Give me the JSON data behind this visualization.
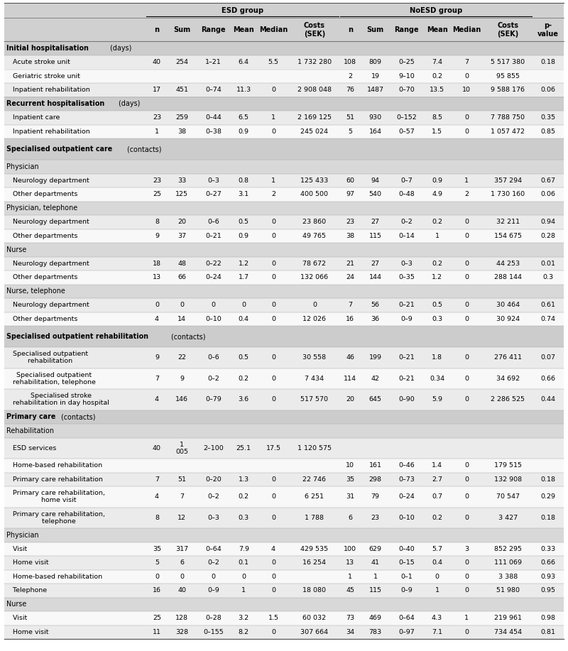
{
  "rows": [
    {
      "label": "Initial hospitalisation (days)",
      "type": "section_bold",
      "data": [
        "",
        "",
        "",
        "",
        "",
        "",
        "",
        "",
        "",
        "",
        "",
        "",
        ""
      ]
    },
    {
      "label": "   Acute stroke unit",
      "type": "data",
      "data": [
        "40",
        "254",
        "1–21",
        "6.4",
        "5.5",
        "1 732 280",
        "108",
        "809",
        "0–25",
        "7.4",
        "7",
        "5 517 380",
        "0.18"
      ]
    },
    {
      "label": "   Geriatric stroke unit",
      "type": "data",
      "data": [
        "",
        "",
        "",
        "",
        "",
        "",
        "2",
        "19",
        "9–10",
        "0.2",
        "0",
        "95 855",
        ""
      ]
    },
    {
      "label": "   Inpatient rehabilitation",
      "type": "data",
      "data": [
        "17",
        "451",
        "0–74",
        "11.3",
        "0",
        "2 908 048",
        "76",
        "1487",
        "0–70",
        "13.5",
        "10",
        "9 588 176",
        "0.06"
      ]
    },
    {
      "label": "Recurrent hospitalisation (days)",
      "type": "section_bold",
      "data": [
        "",
        "",
        "",
        "",
        "",
        "",
        "",
        "",
        "",
        "",
        "",
        "",
        ""
      ]
    },
    {
      "label": "   Inpatient care",
      "type": "data",
      "data": [
        "23",
        "259",
        "0–44",
        "6.5",
        "1",
        "2 169 125",
        "51",
        "930",
        "0–152",
        "8.5",
        "0",
        "7 788 750",
        "0.35"
      ]
    },
    {
      "label": "   Inpatient rehabilitation",
      "type": "data",
      "data": [
        "1",
        "38",
        "0–38",
        "0.9",
        "0",
        "245 024",
        "5",
        "164",
        "0–57",
        "1.5",
        "0",
        "1 057 472",
        "0.85"
      ]
    },
    {
      "label": "Specialised outpatient care\n(contacts)",
      "type": "section_bold2",
      "data": [
        "",
        "",
        "",
        "",
        "",
        "",
        "",
        "",
        "",
        "",
        "",
        "",
        ""
      ]
    },
    {
      "label": "Physician",
      "type": "subsection",
      "data": [
        "",
        "",
        "",
        "",
        "",
        "",
        "",
        "",
        "",
        "",
        "",
        "",
        ""
      ]
    },
    {
      "label": "   Neurology department",
      "type": "data",
      "data": [
        "23",
        "33",
        "0–3",
        "0.8",
        "1",
        "125 433",
        "60",
        "94",
        "0–7",
        "0.9",
        "1",
        "357 294",
        "0.67"
      ]
    },
    {
      "label": "   Other departments",
      "type": "data",
      "data": [
        "25",
        "125",
        "0–27",
        "3.1",
        "2",
        "400 500",
        "97",
        "540",
        "0–48",
        "4.9",
        "2",
        "1 730 160",
        "0.06"
      ]
    },
    {
      "label": "Physician, telephone",
      "type": "subsection",
      "data": [
        "",
        "",
        "",
        "",
        "",
        "",
        "",
        "",
        "",
        "",
        "",
        "",
        ""
      ]
    },
    {
      "label": "   Neurology department",
      "type": "data",
      "data": [
        "8",
        "20",
        "0–6",
        "0.5",
        "0",
        "23 860",
        "23",
        "27",
        "0–2",
        "0.2",
        "0",
        "32 211",
        "0.94"
      ]
    },
    {
      "label": "   Other departments",
      "type": "data",
      "data": [
        "9",
        "37",
        "0–21",
        "0.9",
        "0",
        "49 765",
        "38",
        "115",
        "0–14",
        "1",
        "0",
        "154 675",
        "0.28"
      ]
    },
    {
      "label": "Nurse",
      "type": "subsection",
      "data": [
        "",
        "",
        "",
        "",
        "",
        "",
        "",
        "",
        "",
        "",
        "",
        "",
        ""
      ]
    },
    {
      "label": "   Neurology department",
      "type": "data",
      "data": [
        "18",
        "48",
        "0–22",
        "1.2",
        "0",
        "78 672",
        "21",
        "27",
        "0–3",
        "0.2",
        "0",
        "44 253",
        "0.01"
      ]
    },
    {
      "label": "   Other departments",
      "type": "data",
      "data": [
        "13",
        "66",
        "0–24",
        "1.7",
        "0",
        "132 066",
        "24",
        "144",
        "0–35",
        "1.2",
        "0",
        "288 144",
        "0.3"
      ]
    },
    {
      "label": "Nurse, telephone",
      "type": "subsection",
      "data": [
        "",
        "",
        "",
        "",
        "",
        "",
        "",
        "",
        "",
        "",
        "",
        "",
        ""
      ]
    },
    {
      "label": "   Neurology department",
      "type": "data",
      "data": [
        "0",
        "0",
        "0",
        "0",
        "0",
        "0",
        "7",
        "56",
        "0–21",
        "0.5",
        "0",
        "30 464",
        "0.61"
      ]
    },
    {
      "label": "   Other departments",
      "type": "data",
      "data": [
        "4",
        "14",
        "0–10",
        "0.4",
        "0",
        "12 026",
        "16",
        "36",
        "0–9",
        "0.3",
        "0",
        "30 924",
        "0.74"
      ]
    },
    {
      "label": "Specialised outpatient\nrehabilitation (contacts)",
      "type": "section_bold2",
      "data": [
        "",
        "",
        "",
        "",
        "",
        "",
        "",
        "",
        "",
        "",
        "",
        "",
        ""
      ]
    },
    {
      "label": "   Specialised outpatient\n   rehabilitation",
      "type": "data2",
      "data": [
        "9",
        "22",
        "0–6",
        "0.5",
        "0",
        "30 558",
        "46",
        "199",
        "0–21",
        "1.8",
        "0",
        "276 411",
        "0.07"
      ]
    },
    {
      "label": "   Specialised outpatient\n   rehabilitation, telephone",
      "type": "data2",
      "data": [
        "7",
        "9",
        "0–2",
        "0.2",
        "0",
        "7 434",
        "114",
        "42",
        "0–21",
        "0.34",
        "0",
        "34 692",
        "0.66"
      ]
    },
    {
      "label": "   Specialised stroke\n   rehabilitation in day hospital",
      "type": "data2",
      "data": [
        "4",
        "146",
        "0–79",
        "3.6",
        "0",
        "517 570",
        "20",
        "645",
        "0–90",
        "5.9",
        "0",
        "2 286 525",
        "0.44"
      ]
    },
    {
      "label": "Primary care (contacts)",
      "type": "section_bold",
      "data": [
        "",
        "",
        "",
        "",
        "",
        "",
        "",
        "",
        "",
        "",
        "",
        "",
        ""
      ]
    },
    {
      "label": "Rehabilitation",
      "type": "subsection",
      "data": [
        "",
        "",
        "",
        "",
        "",
        "",
        "",
        "",
        "",
        "",
        "",
        "",
        ""
      ]
    },
    {
      "label": "   ESD services",
      "type": "data_tall",
      "data": [
        "40",
        "1\n005",
        "2–100",
        "25.1",
        "17.5",
        "1 120 575",
        "",
        "",
        "",
        "",
        "",
        "",
        ""
      ]
    },
    {
      "label": "   Home-based rehabilitation",
      "type": "data",
      "data": [
        "",
        "",
        "",
        "",
        "",
        "",
        "10",
        "161",
        "0–46",
        "1.4",
        "0",
        "179 515",
        ""
      ]
    },
    {
      "label": "   Primary care rehabilitation",
      "type": "data",
      "data": [
        "7",
        "51",
        "0–20",
        "1.3",
        "0",
        "22 746",
        "35",
        "298",
        "0–73",
        "2.7",
        "0",
        "132 908",
        "0.18"
      ]
    },
    {
      "label": "   Primary care rehabilitation,\n   home visit",
      "type": "data2",
      "data": [
        "4",
        "7",
        "0–2",
        "0.2",
        "0",
        "6 251",
        "31",
        "79",
        "0–24",
        "0.7",
        "0",
        "70 547",
        "0.29"
      ]
    },
    {
      "label": "   Primary care rehabilitation,\n   telephone",
      "type": "data2",
      "data": [
        "8",
        "12",
        "0–3",
        "0.3",
        "0",
        "1 788",
        "6",
        "23",
        "0–10",
        "0.2",
        "0",
        "3 427",
        "0.18"
      ]
    },
    {
      "label": "Physician",
      "type": "subsection",
      "data": [
        "",
        "",
        "",
        "",
        "",
        "",
        "",
        "",
        "",
        "",
        "",
        "",
        ""
      ]
    },
    {
      "label": "   Visit",
      "type": "data",
      "data": [
        "35",
        "317",
        "0–64",
        "7.9",
        "4",
        "429 535",
        "100",
        "629",
        "0–40",
        "5.7",
        "3",
        "852 295",
        "0.33"
      ]
    },
    {
      "label": "   Home visit",
      "type": "data",
      "data": [
        "5",
        "6",
        "0–2",
        "0.1",
        "0",
        "16 254",
        "13",
        "41",
        "0–15",
        "0.4",
        "0",
        "111 069",
        "0.66"
      ]
    },
    {
      "label": "   Home-based rehabilitation",
      "type": "data",
      "data": [
        "0",
        "0",
        "0",
        "0",
        "0",
        "",
        "1",
        "1",
        "0–1",
        "0",
        "0",
        "3 388",
        "0.93"
      ]
    },
    {
      "label": "   Telephone",
      "type": "data",
      "data": [
        "16",
        "40",
        "0–9",
        "1",
        "0",
        "18 080",
        "45",
        "115",
        "0–9",
        "1",
        "0",
        "51 980",
        "0.95"
      ]
    },
    {
      "label": "Nurse",
      "type": "subsection",
      "data": [
        "",
        "",
        "",
        "",
        "",
        "",
        "",
        "",
        "",
        "",
        "",
        "",
        ""
      ]
    },
    {
      "label": "   Visit",
      "type": "data",
      "data": [
        "25",
        "128",
        "0–28",
        "3.2",
        "1.5",
        "60 032",
        "73",
        "469",
        "0–64",
        "4.3",
        "1",
        "219 961",
        "0.98"
      ]
    },
    {
      "label": "   Home visit",
      "type": "data",
      "data": [
        "11",
        "328",
        "0–155",
        "8.2",
        "0",
        "307 664",
        "34",
        "783",
        "0–97",
        "7.1",
        "0",
        "734 454",
        "0.81"
      ]
    }
  ],
  "col_labels": [
    "",
    "n",
    "Sum",
    "Range",
    "Mean",
    "Median",
    "Costs\n(SEK)",
    "n",
    "Sum",
    "Range",
    "Mean",
    "Median",
    "Costs\n(SEK)",
    "p-\nvalue"
  ],
  "esd_label": "ESD group",
  "noesd_label": "NoESD group",
  "header_bg": "#d0d0d0",
  "section_bold_bg": "#d0d0d0",
  "subsection_bg": "#d0d0d0",
  "data_even_bg": "#ebebeb",
  "data_odd_bg": "#f5f5f5",
  "white_bg": "#ffffff"
}
